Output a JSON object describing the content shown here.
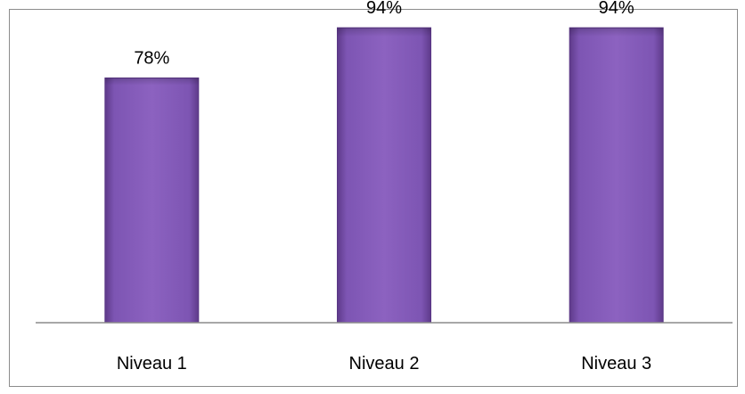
{
  "chart_data": {
    "type": "bar",
    "categories": [
      "Niveau 1",
      "Niveau 2",
      "Niveau 3"
    ],
    "values": [
      78,
      94,
      94
    ],
    "data_labels": [
      "78%",
      "94%",
      "94%"
    ],
    "ylim": [
      0,
      100
    ],
    "grid": false,
    "legend": "none",
    "bar_color": "#7b4fb0"
  }
}
